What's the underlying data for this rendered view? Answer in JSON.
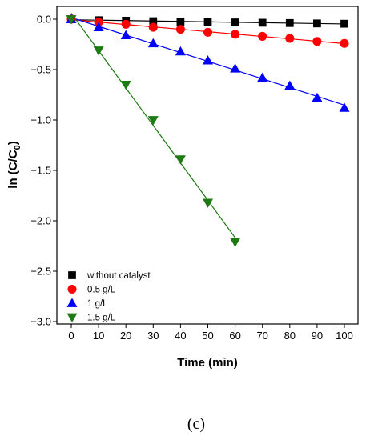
{
  "chart_data": {
    "type": "scatter",
    "xlabel": "Time (min)",
    "ylabel_main": "ln (C/C",
    "ylabel_sub": "0",
    "ylabel_end": ")",
    "xlim": [
      -5,
      102
    ],
    "ylim": [
      -3.0,
      0.1
    ],
    "x_ticks": [
      0,
      10,
      20,
      30,
      40,
      50,
      60,
      70,
      80,
      90,
      100
    ],
    "y_ticks": [
      0.0,
      -0.5,
      -1.0,
      -1.5,
      -2.0,
      -2.5,
      -3.0
    ],
    "y_tick_labels": [
      "0.0",
      "−0.5",
      "−1.0",
      "−1.5",
      "−2.0",
      "−2.5",
      "−3.0"
    ],
    "grid": false,
    "legend_position": "bottom-left",
    "series": [
      {
        "name": "without catalyst",
        "marker": "square",
        "color": "#000000",
        "x": [
          0,
          10,
          20,
          30,
          40,
          50,
          60,
          70,
          80,
          90,
          100
        ],
        "y": [
          0.0,
          -0.01,
          -0.015,
          -0.02,
          -0.025,
          -0.028,
          -0.032,
          -0.035,
          -0.038,
          -0.042,
          -0.045
        ]
      },
      {
        "name": "0.5 g/L",
        "marker": "circle",
        "color": "#ff0000",
        "x": [
          0,
          10,
          20,
          30,
          40,
          50,
          60,
          70,
          80,
          90,
          100
        ],
        "y": [
          0.0,
          -0.03,
          -0.05,
          -0.08,
          -0.1,
          -0.13,
          -0.15,
          -0.17,
          -0.19,
          -0.22,
          -0.24
        ]
      },
      {
        "name": "1 g/L",
        "marker": "triangle-up",
        "color": "#0000ff",
        "x": [
          0,
          10,
          20,
          30,
          40,
          50,
          60,
          70,
          80,
          90,
          100
        ],
        "y": [
          0.0,
          -0.08,
          -0.16,
          -0.24,
          -0.32,
          -0.41,
          -0.49,
          -0.58,
          -0.66,
          -0.78,
          -0.88
        ]
      },
      {
        "name": "1.5 g/L",
        "marker": "triangle-down",
        "color": "#1e7a12",
        "x": [
          0,
          10,
          20,
          30,
          40,
          50,
          60
        ],
        "y": [
          0.0,
          -0.31,
          -0.65,
          -1.0,
          -1.39,
          -1.82,
          -2.21
        ]
      }
    ]
  },
  "caption": "(c)"
}
